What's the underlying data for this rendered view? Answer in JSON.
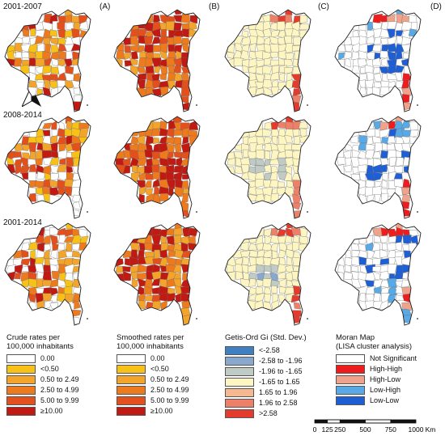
{
  "row_labels": [
    "2001-2007",
    "2008-2014",
    "2001-2014"
  ],
  "panel_letters": [
    "(A)",
    "(B)",
    "(C)",
    "(D)"
  ],
  "north_label": "N",
  "legends": {
    "crude": {
      "title_line1": "Crude rates per",
      "title_line2": "100,000 inhabitants",
      "items": [
        {
          "label": "0.00",
          "color": "#ffffff"
        },
        {
          "label": "<0.50",
          "color": "#f7c118"
        },
        {
          "label": "0.50 to 2.49",
          "color": "#f3a42a"
        },
        {
          "label": "2.50 to 4.99",
          "color": "#ee7a1e"
        },
        {
          "label": "5.00 to 9.99",
          "color": "#e3501c"
        },
        {
          "label": "≥10.00",
          "color": "#c01a12"
        }
      ]
    },
    "smoothed": {
      "title_line1": "Smoothed rates per",
      "title_line2": "100,000 inhabitants",
      "items": [
        {
          "label": "0.00",
          "color": "#ffffff"
        },
        {
          "label": "<0.50",
          "color": "#f7c118"
        },
        {
          "label": "0.50 to 2.49",
          "color": "#f3a42a"
        },
        {
          "label": "2.50 to 4.99",
          "color": "#ee7a1e"
        },
        {
          "label": "5.00 to 9.99",
          "color": "#e3501c"
        },
        {
          "label": "≥10.00",
          "color": "#c01a12"
        }
      ]
    },
    "getis": {
      "title_line1": "Getis-Ord Gi (Std. Dev.)",
      "title_line2": "",
      "items": [
        {
          "label": "<-2.58",
          "color": "#3f7fc2"
        },
        {
          "label": "-2.58 to -1.96",
          "color": "#88a8cd"
        },
        {
          "label": "-1.96 to -1.65",
          "color": "#bfcbc4"
        },
        {
          "label": "-1.65 to 1.65",
          "color": "#fdf6c2"
        },
        {
          "label": "1.65 to 1.96",
          "color": "#f6b88f"
        },
        {
          "label": "1.96 to 2.58",
          "color": "#ee8068"
        },
        {
          "label": ">2.58",
          "color": "#e53b2c"
        }
      ]
    },
    "moran": {
      "title_line1": "Moran Map",
      "title_line2": "(LISA cluster analysis)",
      "items": [
        {
          "label": "Not Significant",
          "color": "#ffffff"
        },
        {
          "label": "High-High",
          "color": "#ee1c1c"
        },
        {
          "label": "High-Low",
          "color": "#f0a38a"
        },
        {
          "label": "Low-High",
          "color": "#58a9e6"
        },
        {
          "label": "Low-Low",
          "color": "#1f5fd6"
        }
      ]
    }
  },
  "scalebar": {
    "ticks": [
      "0",
      "125",
      "250",
      "500",
      "750",
      "1000"
    ],
    "unit": "Km"
  }
}
